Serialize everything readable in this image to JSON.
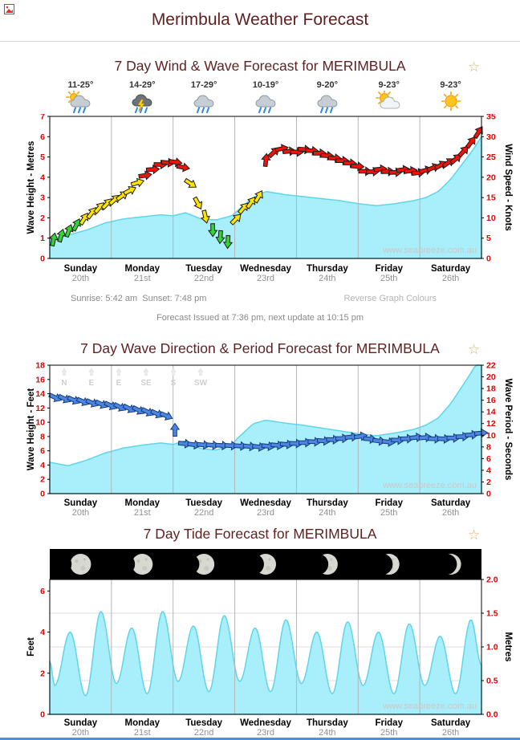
{
  "page": {
    "title": "Merimbula Weather Forecast",
    "watermark": "www.seabreeze.com.au"
  },
  "days": [
    {
      "name": "Sunday",
      "date": "20th"
    },
    {
      "name": "Monday",
      "date": "21st"
    },
    {
      "name": "Tuesday",
      "date": "22nd"
    },
    {
      "name": "Wednesday",
      "date": "23rd"
    },
    {
      "name": "Thursday",
      "date": "24th"
    },
    {
      "name": "Friday",
      "date": "25th"
    },
    {
      "name": "Saturday",
      "date": "26th"
    }
  ],
  "sections": {
    "wind_wave": {
      "title": "7 Day Wind & Wave Forecast for MERIMBULA",
      "temps": [
        "11-25°",
        "14-29°",
        "17-29°",
        "10-19°",
        "9-20°",
        "9-23°",
        "9-23°"
      ],
      "icons": [
        "showers-sun",
        "storm",
        "showers",
        "showers",
        "showers",
        "partly-cloudy",
        "sunny"
      ],
      "sunrise_sunset": "Sunrise: 5:42 am  Sunset: 7:48 pm",
      "reverse_link": "Reverse Graph Colours",
      "issued": "Forecast Issued at 7:36 pm, next update at 10:15 pm"
    },
    "wave_period": {
      "title": "7 Day Wave Direction & Period Forecast for MERIMBULA",
      "compass_labels": [
        "N",
        "E",
        "E",
        "SE",
        "S",
        "SW"
      ]
    },
    "tide": {
      "title": "7 Day Tide Forecast for MERIMBULA"
    }
  },
  "colors": {
    "title": "#5f1f1f",
    "tick": "#e00000",
    "area_fill": "#a9eefb",
    "area_stroke": "#5fd5ea",
    "wind_light": "#35d435",
    "wind_moderate": "#ffe400",
    "wind_strong": "#ef1309",
    "arrow_blue": "#4d86e0",
    "arrow_blue_stroke": "#123a7a",
    "watermark": "#c9c9c9",
    "star": "#f0b050",
    "bottom_bar": "#4f8fde",
    "grid_day": "#b4b4b4",
    "grid_h": "#dcdcdc",
    "day_name": "#000000",
    "day_date": "#909090"
  },
  "chart_data": [
    {
      "type": "area",
      "name": "wind_wave",
      "title": "7 Day Wind & Wave Forecast for MERIMBULA",
      "left_axis": {
        "label": "Wave Height - Metres",
        "ticks": [
          0,
          1,
          2,
          3,
          4,
          5,
          6,
          7
        ],
        "scale_max": 7,
        "decimals": 0
      },
      "right_axis": {
        "label": "Wind Speed - Knots",
        "ticks": [
          0,
          5,
          10,
          15,
          20,
          25,
          30,
          35
        ],
        "scale_max": 35,
        "decimals": 0
      },
      "x_range_days": 7,
      "wave_height_m": {
        "t": [
          0,
          0.3,
          0.6,
          0.9,
          1.2,
          1.5,
          1.8,
          2.0,
          2.2,
          2.45,
          2.7,
          2.95,
          3.1,
          3.3,
          3.5,
          3.8,
          4.1,
          4.4,
          4.7,
          5.0,
          5.3,
          5.6,
          5.9,
          6.1,
          6.3,
          6.5,
          6.7,
          6.85,
          7.0
        ],
        "v": [
          1.0,
          1.15,
          1.4,
          1.75,
          1.95,
          2.05,
          2.15,
          2.1,
          2.25,
          1.95,
          1.9,
          2.1,
          2.5,
          3.0,
          3.3,
          3.15,
          3.05,
          2.95,
          2.85,
          2.7,
          2.6,
          2.7,
          2.85,
          3.0,
          3.3,
          3.9,
          4.7,
          5.3,
          6.0
        ]
      },
      "wind_barbs": {
        "t": [
          0,
          0.25,
          0.5,
          0.75,
          1.0,
          1.25,
          1.5,
          1.75,
          2.0,
          2.2,
          2.35,
          2.5,
          2.65,
          2.8,
          2.92,
          2.98,
          3.02,
          3.2,
          3.38,
          3.44,
          3.5,
          3.62,
          3.75,
          3.95,
          4.15,
          4.35,
          4.55,
          4.75,
          4.95,
          5.15,
          5.35,
          5.55,
          5.75,
          5.95,
          6.15,
          6.35,
          6.55,
          6.75,
          6.9,
          7.0
        ],
        "knots": [
          4,
          6,
          9,
          12,
          14,
          16,
          20,
          23,
          24,
          22,
          15,
          11,
          7,
          5,
          4,
          4,
          11,
          13,
          15,
          21,
          24,
          26,
          27,
          26,
          27,
          26,
          25,
          24,
          23,
          21,
          22,
          21,
          22,
          21,
          22,
          23,
          24,
          27,
          30,
          32
        ],
        "dir": [
          -80,
          -72,
          -60,
          -50,
          -45,
          -30,
          -10,
          0,
          8,
          12,
          55,
          75,
          90,
          95,
          92,
          90,
          -45,
          -52,
          -60,
          -80,
          -85,
          -45,
          -12,
          0,
          5,
          0,
          5,
          0,
          5,
          0,
          -5,
          0,
          -8,
          -5,
          -18,
          -30,
          -40,
          -50,
          -55,
          -60
        ],
        "thresholds": {
          "light_max": 9.5,
          "moderate_max": 19.5
        }
      }
    },
    {
      "type": "area",
      "name": "wave_period",
      "title": "7 Day Wave Direction & Period Forecast for MERIMBULA",
      "left_axis": {
        "label": "Wave Height - Feet",
        "ticks": [
          0,
          2,
          4,
          6,
          8,
          10,
          12,
          14,
          16,
          18
        ],
        "scale_max": 18,
        "decimals": 0
      },
      "right_axis": {
        "label": "Wave Period - Seconds",
        "ticks": [
          0,
          2,
          4,
          6,
          8,
          10,
          12,
          14,
          16,
          18,
          20,
          22
        ],
        "scale_max": 22,
        "decimals": 0
      },
      "x_range_days": 7,
      "wave_height_ft": {
        "t": [
          0,
          0.3,
          0.6,
          0.9,
          1.2,
          1.5,
          1.8,
          2.0,
          2.2,
          2.45,
          2.7,
          2.95,
          3.1,
          3.3,
          3.5,
          3.8,
          4.1,
          4.4,
          4.7,
          5.0,
          5.3,
          5.6,
          5.9,
          6.1,
          6.3,
          6.5,
          6.7,
          6.85,
          7.0
        ],
        "v": [
          4.4,
          3.9,
          4.7,
          5.7,
          6.4,
          6.8,
          7.1,
          6.9,
          7.4,
          6.3,
          6.1,
          6.9,
          8.2,
          9.8,
          10.3,
          9.9,
          9.6,
          9.2,
          8.8,
          8.4,
          8.1,
          8.5,
          9.0,
          9.6,
          10.6,
          12.6,
          15.2,
          17.2,
          19.5
        ]
      },
      "period_arrows": {
        "t": [
          0,
          0.3,
          0.6,
          1.0,
          1.4,
          1.7,
          1.95,
          2.05,
          2.15,
          2.3,
          2.6,
          3.0,
          3.4,
          3.8,
          4.1,
          4.4,
          4.7,
          5.0,
          5.2,
          5.45,
          5.7,
          6.0,
          6.3,
          6.6,
          7.0
        ],
        "sec": [
          16.6,
          16.2,
          15.7,
          15.1,
          14.4,
          13.8,
          13.2,
          10.2,
          8.6,
          8.4,
          8.3,
          8.2,
          8.0,
          8.4,
          8.7,
          9.0,
          9.4,
          9.9,
          9.3,
          8.8,
          9.3,
          9.7,
          9.3,
          9.6,
          10.4
        ],
        "dir": [
          25,
          25,
          22,
          25,
          28,
          25,
          22,
          -90,
          5,
          8,
          5,
          3,
          8,
          5,
          0,
          5,
          0,
          -10,
          5,
          8,
          0,
          -8,
          5,
          0,
          -5
        ]
      }
    },
    {
      "type": "area",
      "name": "tide",
      "title": "7 Day Tide Forecast for MERIMBULA",
      "left_axis": {
        "label": "Feet",
        "ticks": [
          0,
          2,
          4,
          6
        ],
        "scale_max": 6.56,
        "decimals": 0
      },
      "right_axis": {
        "label": "Metres",
        "ticks": [
          0,
          0.5,
          1,
          1.5,
          2
        ],
        "scale_max": 2,
        "decimals": 1
      },
      "x_range_days": 7,
      "tide_ft": {
        "t": [
          0,
          0.08,
          0.33,
          0.58,
          0.83,
          1.08,
          1.33,
          1.58,
          1.83,
          2.08,
          2.33,
          2.58,
          2.83,
          3.08,
          3.33,
          3.58,
          3.83,
          4.08,
          4.33,
          4.58,
          4.83,
          5.08,
          5.33,
          5.58,
          5.83,
          6.08,
          6.33,
          6.58,
          6.83,
          7.0
        ],
        "v": [
          2.6,
          1.4,
          4.0,
          0.9,
          5.0,
          1.5,
          4.2,
          1.0,
          5.0,
          1.6,
          4.3,
          1.1,
          4.8,
          1.6,
          4.2,
          1.1,
          4.6,
          1.5,
          4.0,
          1.0,
          4.5,
          1.4,
          4.0,
          1.0,
          4.4,
          1.4,
          3.8,
          1.0,
          4.6,
          2.4
        ]
      },
      "moon_phases": [
        0.93,
        0.85,
        0.72,
        0.58,
        0.45,
        0.32,
        0.2
      ]
    }
  ]
}
